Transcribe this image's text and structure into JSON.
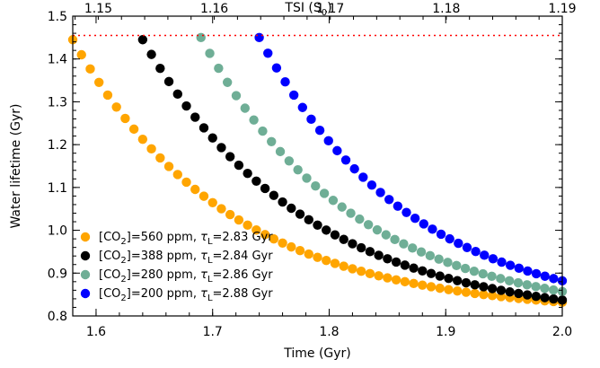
{
  "chart_data": {
    "type": "scatter",
    "xlabel": "Time (Gyr)",
    "ylabel": "Water lifetime (Gyr)",
    "top_axis": {
      "label_main": "TSI (S",
      "label_sub": "0",
      "label_close": ")",
      "tick_labels": [
        "1.15",
        "1.16",
        "1.17",
        "1.18",
        "1.19"
      ],
      "tick_values": [
        1.15,
        1.16,
        1.17,
        1.18,
        1.19
      ],
      "range": [
        1.1478,
        1.19
      ]
    },
    "xlim": [
      1.58,
      2.0
    ],
    "ylim": [
      0.8,
      1.5
    ],
    "x_ticks": [
      1.6,
      1.7,
      1.8,
      1.9,
      2.0
    ],
    "x_tick_labels": [
      "1.6",
      "1.7",
      "1.8",
      "1.9",
      "2.0"
    ],
    "y_ticks": [
      0.8,
      0.9,
      1.0,
      1.1,
      1.2,
      1.3,
      1.4,
      1.5
    ],
    "y_tick_labels": [
      "0.8",
      "0.9",
      "1.0",
      "1.1",
      "1.2",
      "1.3",
      "1.4",
      "1.5"
    ],
    "reference_line": {
      "y": 1.455,
      "color": "#ff0000",
      "style": "dotted"
    },
    "legend_position": "bottom-left",
    "series": [
      {
        "co2_label": "[CO",
        "co2_sub": "2",
        "rest": "]=560 ppm, ",
        "tau": "τ",
        "tau_sub": "L",
        "tau_val": "=2.83 Gyr",
        "color": "#ffa500",
        "x_start": 1.58,
        "x_end": 2.0,
        "y_start": 1.445,
        "y_end": 0.832,
        "k": 0.133
      },
      {
        "co2_label": "[CO",
        "co2_sub": "2",
        "rest": "]=388 ppm, ",
        "tau": "τ",
        "tau_sub": "L",
        "tau_val": "=2.84 Gyr",
        "color": "#000000",
        "x_start": 1.64,
        "x_end": 2.0,
        "y_start": 1.445,
        "y_end": 0.837,
        "k": 0.14
      },
      {
        "co2_label": "[CO",
        "co2_sub": "2",
        "rest": "]=280 ppm, ",
        "tau": "τ",
        "tau_sub": "L",
        "tau_val": "=2.86 Gyr",
        "color": "#6fae96",
        "x_start": 1.69,
        "x_end": 2.0,
        "y_start": 1.45,
        "y_end": 0.857,
        "k": 0.13
      },
      {
        "co2_label": "[CO",
        "co2_sub": "2",
        "rest": "]=200 ppm, ",
        "tau": "τ",
        "tau_sub": "L",
        "tau_val": "=2.88 Gyr",
        "color": "#0000ff",
        "x_start": 1.74,
        "x_end": 2.0,
        "y_start": 1.45,
        "y_end": 0.882,
        "k": 0.13
      }
    ]
  }
}
